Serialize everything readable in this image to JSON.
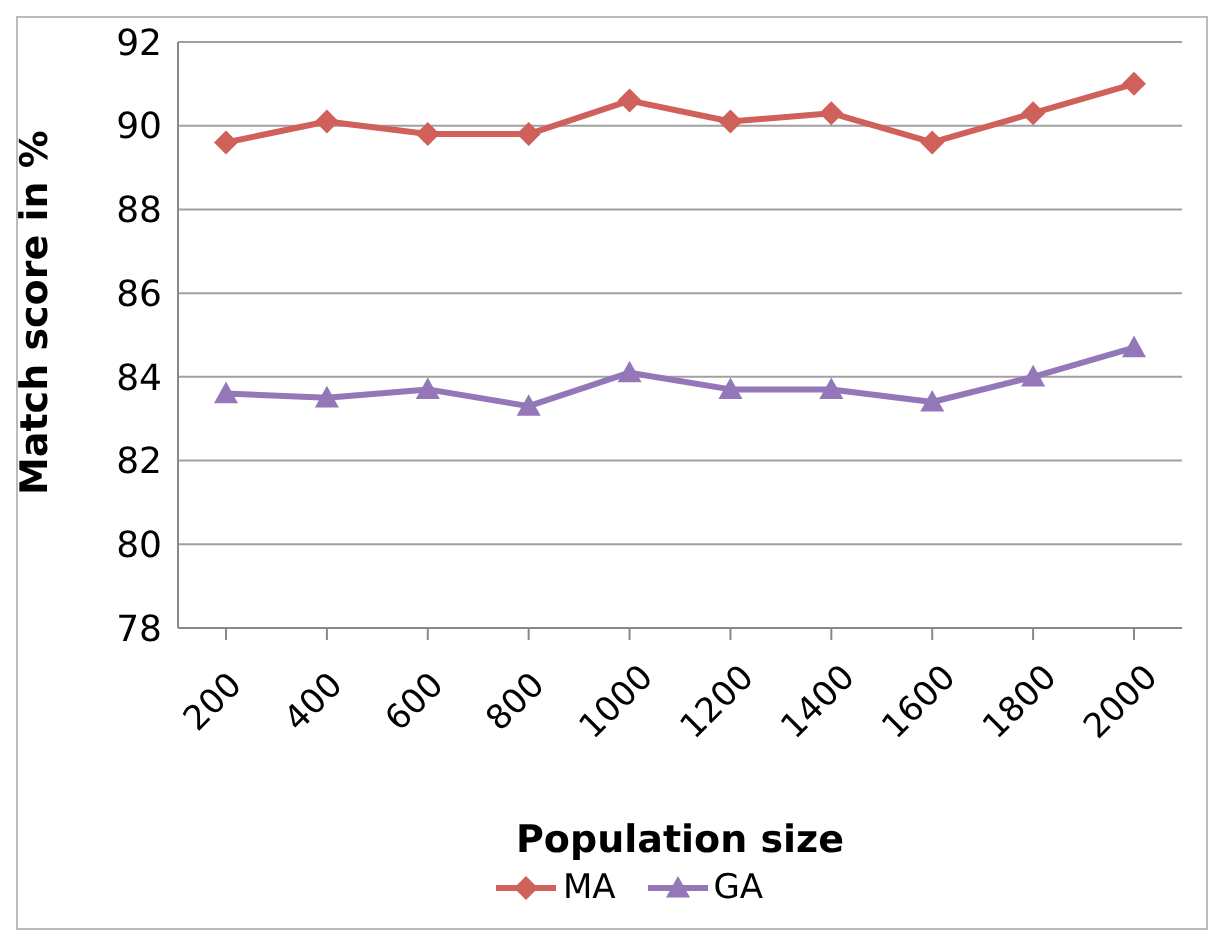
{
  "chart_data": {
    "type": "line",
    "xlabel": "Population size",
    "ylabel": "Match score in %",
    "categories": [
      "200",
      "400",
      "600",
      "800",
      "1000",
      "1200",
      "1400",
      "1600",
      "1800",
      "2000"
    ],
    "series": [
      {
        "name": "MA",
        "color": "#d0605a",
        "marker": "diamond",
        "values": [
          89.6,
          90.1,
          89.8,
          89.8,
          90.6,
          90.1,
          90.3,
          89.6,
          90.3,
          91.0
        ]
      },
      {
        "name": "GA",
        "color": "#9377b8",
        "marker": "triangle",
        "values": [
          83.6,
          83.5,
          83.7,
          83.3,
          84.1,
          83.7,
          83.7,
          83.4,
          84.0,
          84.7
        ]
      }
    ],
    "ylim": [
      78,
      92
    ],
    "yticks": [
      78,
      80,
      82,
      84,
      86,
      88,
      90,
      92
    ],
    "grid": "y",
    "legend": "bottom"
  }
}
